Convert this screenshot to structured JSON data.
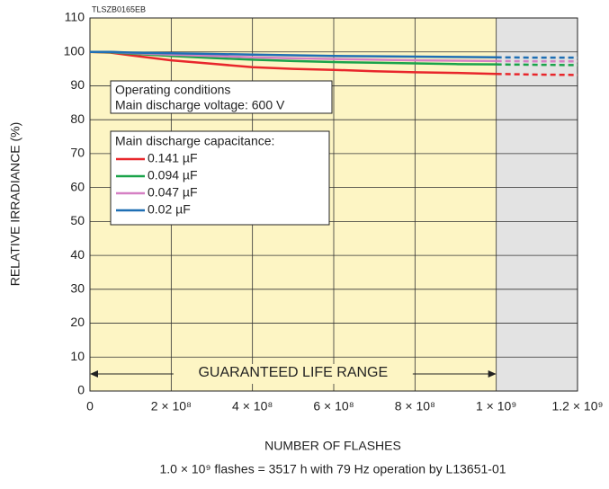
{
  "chart_data": {
    "type": "line",
    "title": "TLSZB0165EB",
    "y_label": "RELATIVE IRRADIANCE (%)",
    "x_label": "NUMBER OF FLASHES",
    "note": "1.0 × 10⁹ flashes = 3517 h with 79 Hz operation by L13651-01",
    "annotation": "GUARANTEED LIFE RANGE",
    "guaranteed_range": [
      0,
      1000000000
    ],
    "conditions": [
      "Operating conditions",
      "Main discharge voltage: 600 V"
    ],
    "legend_title": "Main discharge capacitance:",
    "x": [
      0,
      50000000,
      100000000,
      200000000,
      300000000,
      400000000,
      500000000,
      600000000,
      700000000,
      800000000,
      900000000,
      1000000000,
      1100000000,
      1200000000
    ],
    "series": [
      {
        "name": "0.141 µF",
        "color": "#e8262b",
        "values": [
          100,
          99.8,
          99,
          97.5,
          96.5,
          95.5,
          95,
          94.7,
          94.3,
          94,
          93.8,
          93.5,
          93.3,
          93.2
        ]
      },
      {
        "name": "0.094 µF",
        "color": "#1aa34a",
        "values": [
          100,
          99.9,
          99.5,
          98.8,
          98.2,
          97.7,
          97.3,
          97,
          96.8,
          96.6,
          96.4,
          96.3,
          96.2,
          96.1
        ]
      },
      {
        "name": "0.047 µF",
        "color": "#d680c4",
        "values": [
          100,
          100,
          99.7,
          99.2,
          98.8,
          98.4,
          98.1,
          97.9,
          97.7,
          97.5,
          97.4,
          97.3,
          97.2,
          97.2
        ]
      },
      {
        "name": "0.02 µF",
        "color": "#1f6fb4",
        "values": [
          100,
          100,
          99.8,
          99.6,
          99.4,
          99.2,
          99,
          98.8,
          98.7,
          98.6,
          98.5,
          98.4,
          98.3,
          98.3
        ]
      }
    ],
    "xlim": [
      0,
      1200000000
    ],
    "xticks": [
      0,
      {
        "value": 200000000,
        "label": "2 × 10⁸"
      },
      {
        "value": 400000000,
        "label": "4 × 10⁸"
      },
      {
        "value": 600000000,
        "label": "6 × 10⁸"
      },
      {
        "value": 800000000,
        "label": "8 × 10⁸"
      },
      {
        "value": 1000000000,
        "label": "1 × 10⁹"
      },
      {
        "value": 1200000000,
        "label": "1.2 × 10⁹"
      }
    ],
    "ylim": [
      0,
      110
    ],
    "yticks": [
      0,
      10,
      20,
      30,
      40,
      50,
      60,
      70,
      80,
      90,
      100,
      110
    ],
    "grid": true
  }
}
